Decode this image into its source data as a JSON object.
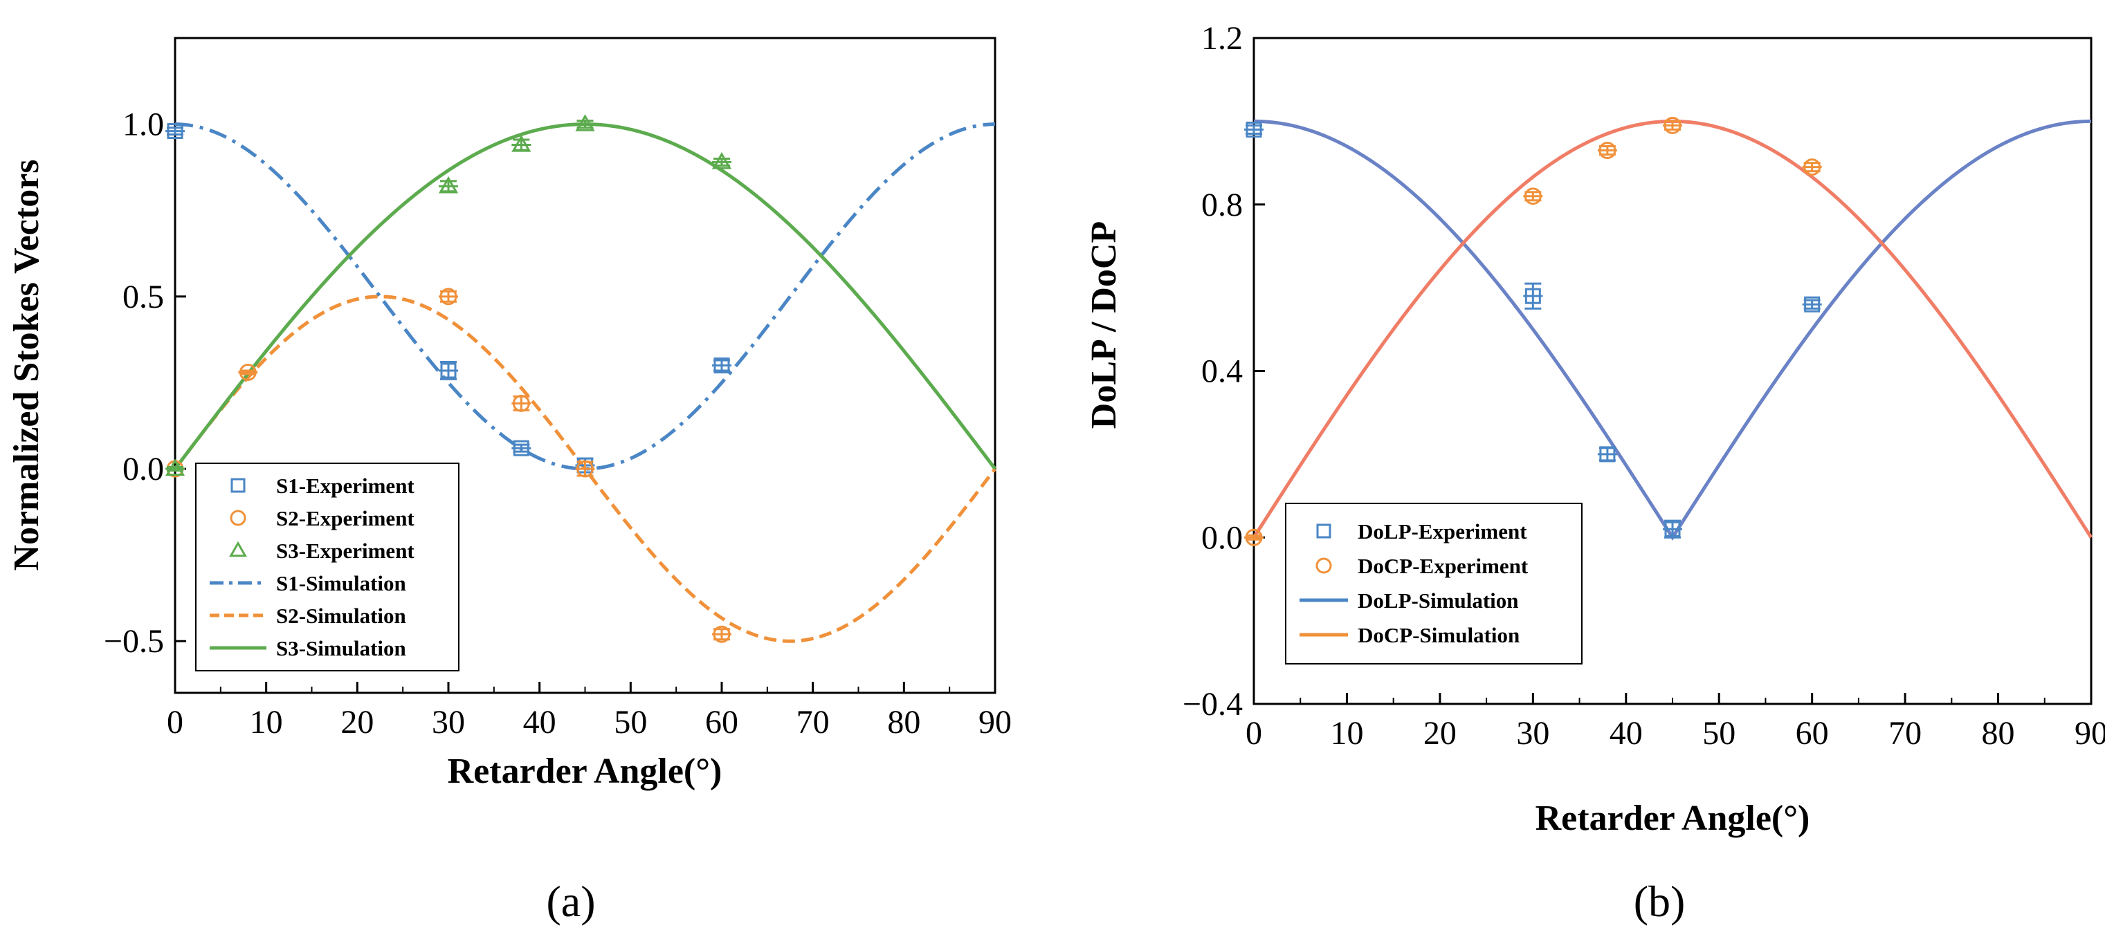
{
  "chart_data": [
    {
      "type": "line",
      "panel_label": "(a)",
      "xlabel": "Retarder Angle(°)",
      "ylabel": "Normalized Stokes Vectors",
      "xlim": [
        0,
        90
      ],
      "ylim": [
        -0.65,
        1.25
      ],
      "x_ticks": [
        0,
        10,
        20,
        30,
        40,
        50,
        60,
        70,
        80,
        90
      ],
      "y_ticks": [
        -0.5,
        0.0,
        0.5,
        1.0
      ],
      "x_tick_labels": [
        "0",
        "10",
        "20",
        "30",
        "40",
        "50",
        "60",
        "70",
        "80",
        "90"
      ],
      "y_tick_labels": [
        "−0.5",
        "0.0",
        "0.5",
        "1.0"
      ],
      "grid": false,
      "legend_position": "bottom-left",
      "series": [
        {
          "name": "S1-Experiment",
          "kind": "marker",
          "marker": "square",
          "color": "#4a86c5",
          "x": [
            0,
            30,
            38,
            45,
            60
          ],
          "y": [
            0.98,
            0.285,
            0.06,
            0.01,
            0.3
          ],
          "err": [
            0.01,
            0.025,
            0.01,
            0.02,
            0.015
          ]
        },
        {
          "name": "S2-Experiment",
          "kind": "marker",
          "marker": "circle",
          "color": "#f0913a",
          "x": [
            0,
            8,
            30,
            38,
            45,
            60
          ],
          "y": [
            0.0,
            0.28,
            0.5,
            0.19,
            0.0,
            -0.48
          ],
          "err": [
            0.005,
            0.005,
            0.015,
            0.02,
            0.02,
            0.015
          ]
        },
        {
          "name": "S3-Experiment",
          "kind": "marker",
          "marker": "triangle",
          "color": "#5cab4e",
          "x": [
            0,
            30,
            38,
            45,
            60
          ],
          "y": [
            0.0,
            0.82,
            0.94,
            1.0,
            0.89
          ],
          "err": [
            0.005,
            0.015,
            0.015,
            0.01,
            0.01
          ]
        },
        {
          "name": "S1-Simulation",
          "kind": "line",
          "dash": "dashdot",
          "color": "#4a86c5",
          "formula": "cos^2(2x)"
        },
        {
          "name": "S2-Simulation",
          "kind": "line",
          "dash": "dash",
          "color": "#f0913a",
          "formula": "sin(2x)cos(2x)"
        },
        {
          "name": "S3-Simulation",
          "kind": "line",
          "dash": "solid",
          "color": "#5cab4e",
          "formula": "sin(2x)"
        }
      ]
    },
    {
      "type": "line",
      "panel_label": "(b)",
      "xlabel": "Retarder Angle(°)",
      "ylabel": "DoLP / DoCP",
      "xlim": [
        0,
        90
      ],
      "ylim": [
        -0.4,
        1.2
      ],
      "x_ticks": [
        0,
        10,
        20,
        30,
        40,
        50,
        60,
        70,
        80,
        90
      ],
      "y_ticks": [
        -0.4,
        0.0,
        0.4,
        0.8,
        1.2
      ],
      "x_tick_labels": [
        "0",
        "10",
        "20",
        "30",
        "40",
        "50",
        "60",
        "70",
        "80",
        "90"
      ],
      "y_tick_labels": [
        "−0.4",
        "0.0",
        "0.4",
        "0.8",
        "1.2"
      ],
      "grid": false,
      "legend_position": "bottom-left",
      "series": [
        {
          "name": "DoLP-Experiment",
          "kind": "marker",
          "marker": "square",
          "color": "#4a86c5",
          "x": [
            0,
            30,
            38,
            45,
            60
          ],
          "y": [
            0.98,
            0.58,
            0.2,
            0.02,
            0.56
          ],
          "err": [
            0.01,
            0.03,
            0.015,
            0.02,
            0.01
          ]
        },
        {
          "name": "DoCP-Experiment",
          "kind": "marker",
          "marker": "circle",
          "color": "#f0913a",
          "x": [
            0,
            30,
            38,
            45,
            60
          ],
          "y": [
            0.0,
            0.82,
            0.93,
            0.99,
            0.89
          ],
          "err": [
            0.005,
            0.01,
            0.01,
            0.01,
            0.01
          ]
        },
        {
          "name": "DoLP-Simulation",
          "kind": "line",
          "dash": "solid",
          "color": "#6a82c6",
          "formula": "|cos(2x)|"
        },
        {
          "name": "DoCP-Simulation",
          "kind": "line",
          "dash": "solid",
          "color": "#f07d66",
          "formula": "sin(2x)"
        }
      ]
    }
  ],
  "legend_b_line_colors": {
    "DoLP-Simulation": "#4a86c5",
    "DoCP-Simulation": "#f0913a"
  }
}
